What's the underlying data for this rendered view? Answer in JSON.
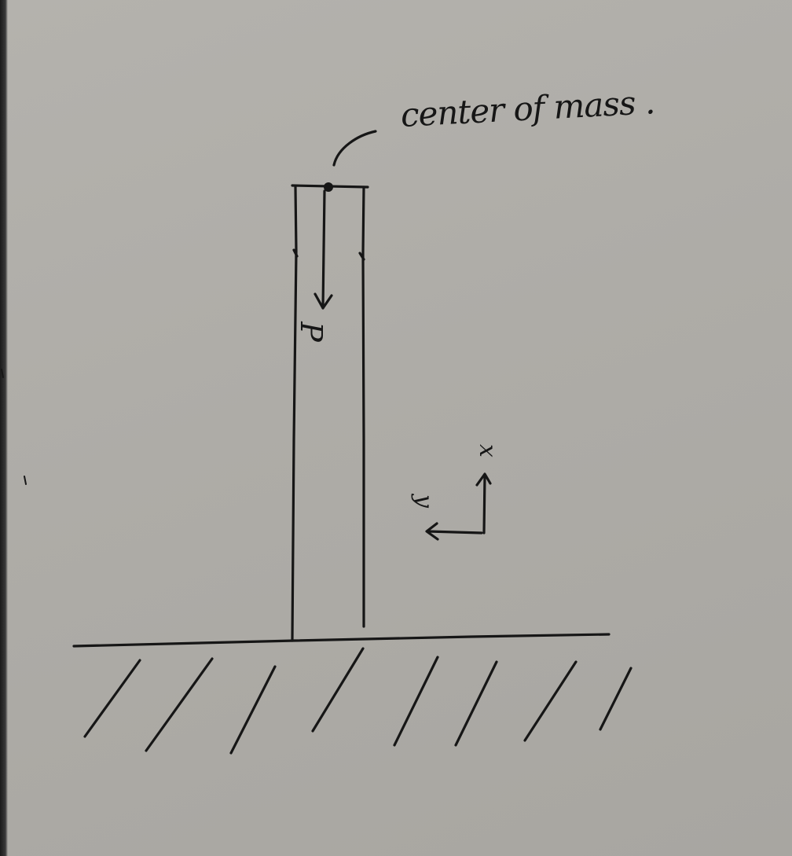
{
  "diagram": {
    "labels": {
      "center_of_mass": "center of mass .",
      "force": "P",
      "axis_x": "x",
      "axis_y": "y"
    },
    "colors": {
      "paper": "#b0aea9",
      "ink": "#161616"
    }
  }
}
